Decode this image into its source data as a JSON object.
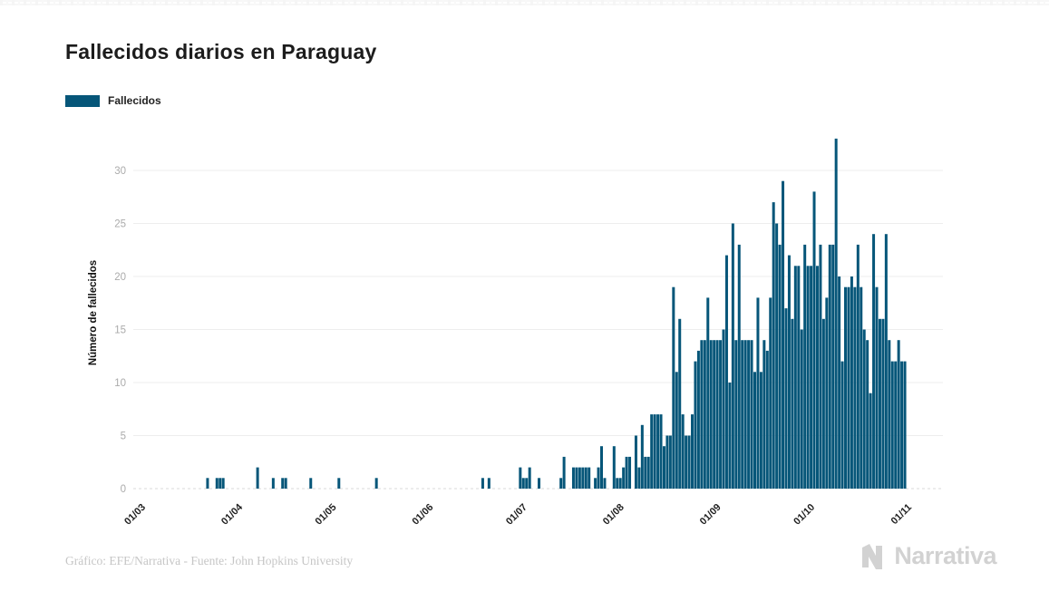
{
  "page": {
    "title": "Fallecidos diarios en Paraguay",
    "footer": "Gráfico: EFE/Narrativa - Fuente: John Hopkins University",
    "logo_text": "Narrativa"
  },
  "legend": {
    "label": "Fallecidos"
  },
  "colors": {
    "bar": "#065679",
    "grid": "#ededed",
    "zero_line": "#d9d9d9",
    "ytick": "#ababab",
    "xtick": "#1f1f1f",
    "logo": "#d2d2d2"
  },
  "chart_data": {
    "type": "bar",
    "title": "Fallecidos diarios en Paraguay",
    "series_name": "Fallecidos",
    "xlabel": "",
    "ylabel": "Número de fallecidos",
    "ylim": [
      0,
      33
    ],
    "yticks": [
      0,
      5,
      10,
      15,
      20,
      25,
      30
    ],
    "x_tick_labels": [
      "01/03",
      "01/04",
      "01/05",
      "01/06",
      "01/07",
      "01/08",
      "01/09",
      "01/10",
      "01/11"
    ],
    "grid": "horizontal",
    "legend_position": "top-left",
    "bar_color": "#065679",
    "months": [
      {
        "label": "01/03",
        "days": [
          0,
          0,
          0,
          0,
          0,
          0,
          0,
          0,
          0,
          0,
          0,
          0,
          0,
          0,
          0,
          0,
          0,
          0,
          0,
          0,
          0,
          1,
          0,
          0,
          1,
          1,
          1,
          0,
          0,
          0,
          0
        ]
      },
      {
        "label": "01/04",
        "days": [
          0,
          0,
          0,
          0,
          0,
          0,
          2,
          0,
          0,
          0,
          0,
          1,
          0,
          0,
          1,
          1,
          0,
          0,
          0,
          0,
          0,
          0,
          0,
          1,
          0,
          0,
          0,
          0,
          0,
          0
        ]
      },
      {
        "label": "01/05",
        "days": [
          0,
          0,
          1,
          0,
          0,
          0,
          0,
          0,
          0,
          0,
          0,
          0,
          0,
          0,
          1,
          0,
          0,
          0,
          0,
          0,
          0,
          0,
          0,
          0,
          0,
          0,
          0,
          0,
          0,
          0,
          0
        ]
      },
      {
        "label": "01/06",
        "days": [
          0,
          0,
          0,
          0,
          0,
          0,
          0,
          0,
          0,
          0,
          0,
          0,
          0,
          0,
          0,
          0,
          0,
          1,
          0,
          1,
          0,
          0,
          0,
          0,
          0,
          0,
          0,
          0,
          0,
          2
        ]
      },
      {
        "label": "01/07",
        "days": [
          1,
          1,
          2,
          0,
          0,
          1,
          0,
          0,
          0,
          0,
          0,
          0,
          1,
          3,
          0,
          0,
          2,
          2,
          2,
          2,
          2,
          2,
          0,
          1,
          2,
          4,
          1,
          0,
          0,
          4,
          1
        ]
      },
      {
        "label": "01/08",
        "days": [
          1,
          2,
          3,
          3,
          0,
          5,
          2,
          6,
          3,
          3,
          7,
          7,
          7,
          7,
          4,
          5,
          5,
          19,
          11,
          16,
          7,
          5,
          5,
          7,
          12,
          13,
          14,
          14,
          18,
          14,
          14
        ]
      },
      {
        "label": "01/09",
        "days": [
          14,
          14,
          15,
          22,
          10,
          25,
          14,
          23,
          14,
          14,
          14,
          14,
          11,
          18,
          11,
          14,
          13,
          18,
          27,
          25,
          23,
          29,
          17,
          22,
          16,
          21,
          21,
          15,
          23,
          21
        ]
      },
      {
        "label": "01/10",
        "days": [
          21,
          28,
          21,
          23,
          16,
          18,
          23,
          23,
          33,
          20,
          12,
          19,
          19,
          20,
          19,
          23,
          19,
          15,
          14,
          9,
          24,
          19,
          16,
          16,
          24,
          14,
          12,
          12,
          14,
          12,
          12
        ]
      }
    ]
  }
}
